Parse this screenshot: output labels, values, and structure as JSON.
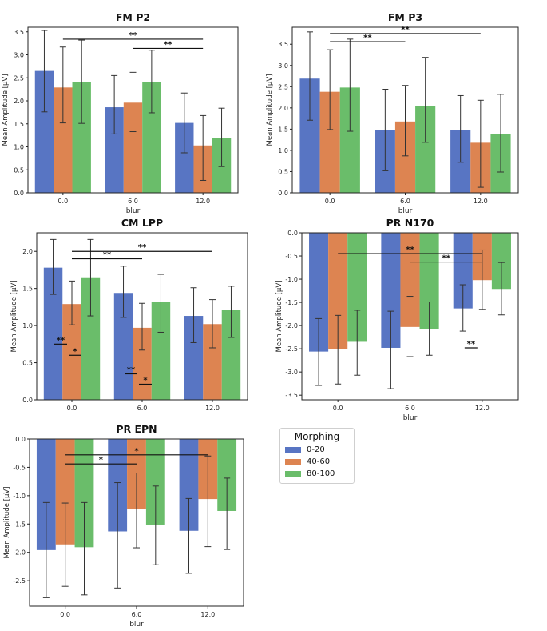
{
  "colors": {
    "c0": "#5875c3",
    "c1": "#dd8451",
    "c2": "#6abd6a"
  },
  "legend": {
    "title": "Morphing",
    "items": [
      {
        "label": "0-20",
        "color": "#5875c3"
      },
      {
        "label": "40-60",
        "color": "#dd8451"
      },
      {
        "label": "80-100",
        "color": "#6abd6a"
      }
    ]
  },
  "chart_data": [
    {
      "id": "fm_p2",
      "type": "bar",
      "title": "FM P2",
      "xlabel": "blur",
      "ylabel": "Mean Amplitude [μV]",
      "categories": [
        "0.0",
        "6.0",
        "12.0"
      ],
      "ylim": [
        0,
        3.6
      ],
      "yticks": [
        "0.0",
        "0.5",
        "1.0",
        "1.5",
        "2.0",
        "2.5",
        "3.0",
        "3.5"
      ],
      "series": [
        {
          "name": "0-20",
          "values": [
            2.65,
            1.86,
            1.52
          ],
          "err_low": [
            1.76,
            1.28,
            0.87
          ],
          "err_high": [
            3.53,
            2.55,
            2.17
          ]
        },
        {
          "name": "40-60",
          "values": [
            2.29,
            1.96,
            1.03
          ],
          "err_low": [
            1.52,
            1.33,
            0.27
          ],
          "err_high": [
            3.17,
            2.62,
            1.68
          ]
        },
        {
          "name": "80-100",
          "values": [
            2.41,
            2.4,
            1.2
          ],
          "err_low": [
            1.51,
            1.74,
            0.57
          ],
          "err_high": [
            3.32,
            3.1,
            1.84
          ]
        }
      ],
      "annotations": [
        {
          "label": "**",
          "x_from": 0.0,
          "x_to": 12.0,
          "y": 3.34
        },
        {
          "label": "**",
          "x_from": 6.0,
          "x_to": 12.0,
          "y": 3.14
        }
      ]
    },
    {
      "id": "fm_p3",
      "type": "bar",
      "title": "FM P3",
      "xlabel": "blur",
      "ylabel": "Mean Amplitude [μV]",
      "categories": [
        "0.0",
        "6.0",
        "12.0"
      ],
      "ylim": [
        0,
        3.9
      ],
      "yticks": [
        "0.0",
        "0.5",
        "1.0",
        "1.5",
        "2.0",
        "2.5",
        "3.0",
        "3.5"
      ],
      "series": [
        {
          "name": "0-20",
          "values": [
            2.69,
            1.47,
            1.47
          ],
          "err_low": [
            1.71,
            0.52,
            0.72
          ],
          "err_high": [
            3.79,
            2.44,
            2.29
          ]
        },
        {
          "name": "40-60",
          "values": [
            2.38,
            1.68,
            1.18
          ],
          "err_low": [
            1.49,
            0.87,
            0.13
          ],
          "err_high": [
            3.37,
            2.53,
            2.18
          ]
        },
        {
          "name": "80-100",
          "values": [
            2.48,
            2.05,
            1.38
          ],
          "err_low": [
            1.45,
            1.19,
            0.49
          ],
          "err_high": [
            3.62,
            3.19,
            2.32
          ]
        }
      ],
      "annotations": [
        {
          "label": "**",
          "x_from": 0.0,
          "x_to": 12.0,
          "y": 3.75
        },
        {
          "label": "**",
          "x_from": 0.0,
          "x_to": 6.0,
          "y": 3.56
        }
      ]
    },
    {
      "id": "cm_lpp",
      "type": "bar",
      "title": "CM  LPP",
      "xlabel": "",
      "ylabel": "Mean Amplitude [μV]",
      "categories": [
        "0.0",
        "6.0",
        "12.0"
      ],
      "ylim": [
        0,
        2.25
      ],
      "yticks": [
        "0.0",
        "0.5",
        "1.0",
        "1.5",
        "2.0"
      ],
      "series": [
        {
          "name": "0-20",
          "values": [
            1.78,
            1.44,
            1.13
          ],
          "err_low": [
            1.42,
            1.11,
            0.77
          ],
          "err_high": [
            2.16,
            1.8,
            1.51
          ]
        },
        {
          "name": "40-60",
          "values": [
            1.29,
            0.97,
            1.02
          ],
          "err_low": [
            1.01,
            0.67,
            0.7
          ],
          "err_high": [
            1.6,
            1.3,
            1.35
          ]
        },
        {
          "name": "80-100",
          "values": [
            1.65,
            1.32,
            1.21
          ],
          "err_low": [
            1.13,
            0.91,
            0.84
          ],
          "err_high": [
            2.16,
            1.69,
            1.53
          ]
        }
      ],
      "annotations": [
        {
          "label": "**",
          "x_from": 0.0,
          "x_to": 12.0,
          "y": 2.0
        },
        {
          "label": "**",
          "x_from": 0.0,
          "x_to": 6.0,
          "y": 1.9
        },
        {
          "label": "**",
          "x_from": 0.0,
          "x_to": 0.0,
          "y": 0.75,
          "within": true,
          "pos": "left"
        },
        {
          "label": "*",
          "x_from": 0.0,
          "x_to": 0.0,
          "y": 0.6,
          "within": true,
          "pos": "right"
        },
        {
          "label": "**",
          "x_from": 6.0,
          "x_to": 6.0,
          "y": 0.35,
          "within": true,
          "pos": "left"
        },
        {
          "label": "*",
          "x_from": 6.0,
          "x_to": 6.0,
          "y": 0.21,
          "within": true,
          "pos": "right"
        }
      ]
    },
    {
      "id": "pr_n170",
      "type": "bar",
      "title": "PR  N170",
      "xlabel": "blur",
      "ylabel": "Mean Amplitude [μV]",
      "categories": [
        "0.0",
        "6.0",
        "12.0"
      ],
      "ylim": [
        -3.6,
        0
      ],
      "yticks": [
        "-3.5",
        "-3.0",
        "-2.5",
        "-2.0",
        "-1.5",
        "-1.0",
        "-0.5",
        "0.0"
      ],
      "series": [
        {
          "name": "0-20",
          "values": [
            -2.56,
            -2.48,
            -1.63
          ],
          "err_low": [
            -3.29,
            -3.36,
            -2.12
          ],
          "err_high": [
            -1.85,
            -1.69,
            -1.12
          ]
        },
        {
          "name": "40-60",
          "values": [
            -2.5,
            -2.03,
            -1.02
          ],
          "err_low": [
            -3.26,
            -2.67,
            -1.65
          ],
          "err_high": [
            -1.78,
            -1.37,
            -0.37
          ]
        },
        {
          "name": "80-100",
          "values": [
            -2.35,
            -2.07,
            -1.21
          ],
          "err_low": [
            -3.07,
            -2.64,
            -1.77
          ],
          "err_high": [
            -1.67,
            -1.49,
            -0.64
          ]
        }
      ],
      "annotations": [
        {
          "label": "**",
          "x_from": 0.0,
          "x_to": 12.0,
          "y": -0.45
        },
        {
          "label": "**",
          "x_from": 6.0,
          "x_to": 12.0,
          "y": -0.63
        },
        {
          "label": "**",
          "x_from": 12.0,
          "x_to": 12.0,
          "y": -2.48,
          "within": true,
          "pos": "left"
        }
      ]
    },
    {
      "id": "pr_epn",
      "type": "bar",
      "title": "PR  EPN",
      "xlabel": "blur",
      "ylabel": "Mean Amplitude [μV]",
      "categories": [
        "0.0",
        "6.0",
        "12.0"
      ],
      "ylim": [
        -2.95,
        0
      ],
      "yticks": [
        "-2.5",
        "-2.0",
        "-1.5",
        "-1.0",
        "-0.5",
        "0.0"
      ],
      "series": [
        {
          "name": "0-20",
          "values": [
            -1.96,
            -1.63,
            -1.62
          ],
          "err_low": [
            -2.8,
            -2.63,
            -2.37
          ],
          "err_high": [
            -1.12,
            -0.77,
            -1.05
          ]
        },
        {
          "name": "40-60",
          "values": [
            -1.86,
            -1.23,
            -1.06
          ],
          "err_low": [
            -2.6,
            -1.92,
            -1.9
          ],
          "err_high": [
            -1.13,
            -0.6,
            -0.3
          ]
        },
        {
          "name": "80-100",
          "values": [
            -1.91,
            -1.51,
            -1.27
          ],
          "err_low": [
            -2.75,
            -2.22,
            -1.95
          ],
          "err_high": [
            -1.12,
            -0.83,
            -0.69
          ]
        }
      ],
      "annotations": [
        {
          "label": "*",
          "x_from": 0.0,
          "x_to": 12.0,
          "y": -0.28
        },
        {
          "label": "*",
          "x_from": 0.0,
          "x_to": 6.0,
          "y": -0.44
        }
      ]
    }
  ]
}
